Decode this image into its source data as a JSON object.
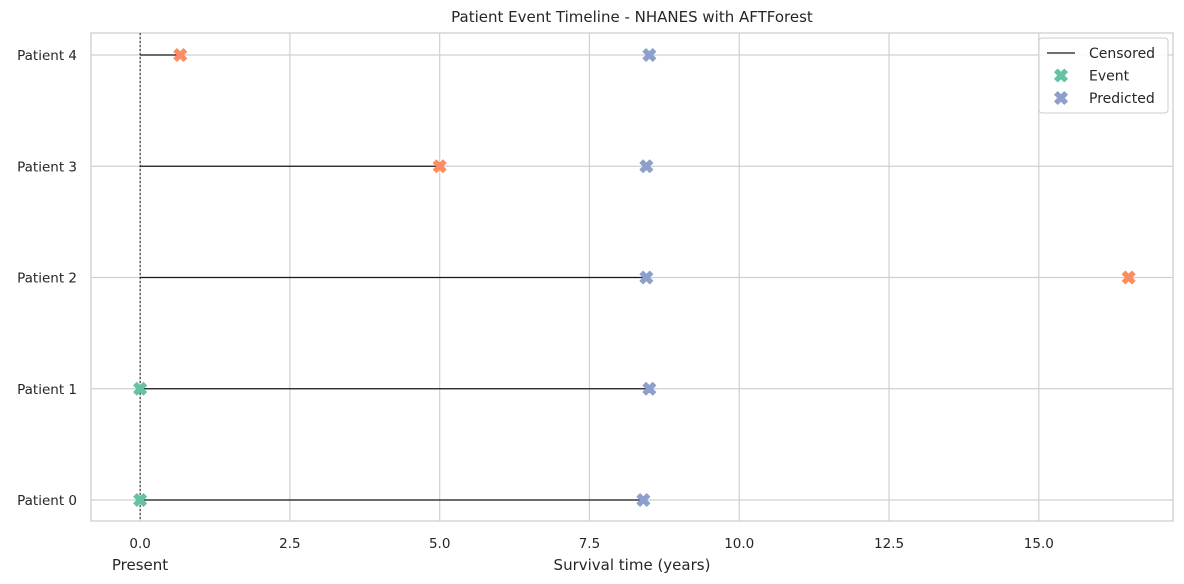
{
  "chart_data": {
    "type": "scatter",
    "title": "Patient Event Timeline - NHANES with AFTForest",
    "xlabel": "Survival time (years)",
    "ylabel": "",
    "present_label": "Present",
    "xlim": [
      -0.82,
      17.24
    ],
    "xticks": [
      0.0,
      2.5,
      5.0,
      7.5,
      10.0,
      12.5,
      15.0
    ],
    "xtick_labels": [
      "0.0",
      "2.5",
      "5.0",
      "7.5",
      "10.0",
      "12.5",
      "15.0"
    ],
    "categories": [
      "Patient 0",
      "Patient 1",
      "Patient 2",
      "Patient 3",
      "Patient 4"
    ],
    "grid": true,
    "legend_position": "top-right",
    "colors": {
      "line": "#1a1a1a",
      "event": "#66c2a5",
      "censored_marker": "#fc8d62",
      "predicted": "#8da0cb",
      "grid": "#d0d0d0",
      "spine": "#cccccc"
    },
    "legend": [
      {
        "label": "Censored",
        "kind": "line"
      },
      {
        "label": "Event",
        "kind": "marker",
        "color": "#66c2a5"
      },
      {
        "label": "Predicted",
        "kind": "marker",
        "color": "#8da0cb"
      }
    ],
    "series": [
      {
        "patient": "Patient 0",
        "line_end": 8.4,
        "observed_time": 0.0,
        "status": "event",
        "predicted": 8.4
      },
      {
        "patient": "Patient 1",
        "line_end": 8.5,
        "observed_time": 0.0,
        "status": "event",
        "predicted": 8.5
      },
      {
        "patient": "Patient 2",
        "line_end": 8.45,
        "observed_time": 16.5,
        "status": "censored",
        "predicted": 8.45
      },
      {
        "patient": "Patient 3",
        "line_end": 5.0,
        "observed_time": 5.0,
        "status": "censored",
        "predicted": 8.45
      },
      {
        "patient": "Patient 4",
        "line_end": 0.67,
        "observed_time": 0.67,
        "status": "censored",
        "predicted": 8.5
      }
    ]
  }
}
